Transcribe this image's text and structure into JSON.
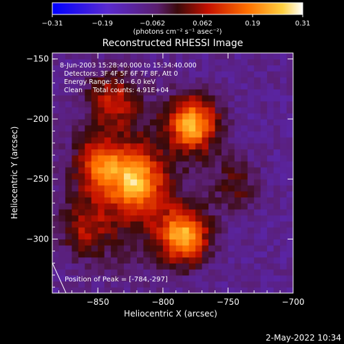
{
  "chart_data": {
    "type": "heatmap",
    "title": "Reconstructed RHESSI Image",
    "colorbar": {
      "ticks": [
        "-0.31",
        "-0.19",
        "-0.062",
        "0.062",
        "0.19",
        "0.31"
      ],
      "unit_label": "(photons cm⁻² s⁻¹ asec⁻²)",
      "range": [
        -0.31,
        0.31
      ]
    },
    "xlabel": "Heliocentric X (arcsec)",
    "ylabel": "Heliocentric Y (arcsec)",
    "xlim": [
      -885,
      -700
    ],
    "ylim": [
      -345,
      -145
    ],
    "xticks": [
      {
        "value": -850,
        "label": "−850"
      },
      {
        "value": -800,
        "label": "−800"
      },
      {
        "value": -750,
        "label": "−750"
      },
      {
        "value": -700,
        "label": "−700"
      }
    ],
    "yticks": [
      {
        "value": -150,
        "label": "−150"
      },
      {
        "value": -200,
        "label": "−200"
      },
      {
        "value": -250,
        "label": "−250"
      },
      {
        "value": -300,
        "label": "−300"
      }
    ],
    "annotations": [
      "8-Jun-2003 15:28:40.000 to 15:34:40.000",
      "Detectors: 3F 4F 5F 6F 7F 8F, Att 0",
      "Energy Range: 3.0 - 6.0 keV",
      "Clean     Total counts: 4.91E+04"
    ],
    "peak_label": "Position of Peak = [-784,-297]",
    "peak": {
      "x": -784,
      "y": -297
    },
    "sources": [
      {
        "x": -777,
        "y": -204,
        "intensity": 0.31
      },
      {
        "x": -784,
        "y": -297,
        "intensity": 0.3
      },
      {
        "x": -820,
        "y": -252,
        "intensity": 0.22
      },
      {
        "x": -848,
        "y": -238,
        "intensity": 0.18
      },
      {
        "x": -860,
        "y": -290,
        "intensity": 0.12
      },
      {
        "x": -838,
        "y": -183,
        "intensity": 0.15
      },
      {
        "x": -745,
        "y": -255,
        "intensity": 0.1
      }
    ]
  },
  "footer": {
    "timestamp": "2-May-2022 10:34"
  }
}
